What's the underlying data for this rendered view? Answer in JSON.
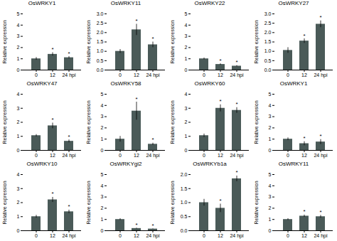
{
  "chart_data": [
    {
      "type": "bar",
      "title": "OsWRKY1",
      "ylabel": "Relative expression",
      "categories": [
        "0",
        "12",
        "24 hpi"
      ],
      "values": [
        1.0,
        1.4,
        1.1
      ],
      "errors": [
        0.12,
        0.15,
        0.1
      ],
      "annotations": [
        null,
        "*",
        "*"
      ],
      "color": "#4a5a58",
      "ylim": [
        0,
        5
      ],
      "yticks": [
        0,
        1,
        2,
        3,
        4,
        5
      ]
    },
    {
      "type": "bar",
      "title": "OsWRKY11",
      "ylabel": "Relative expression",
      "categories": [
        "0",
        "12",
        "24 hpi"
      ],
      "values": [
        1.0,
        2.15,
        1.35
      ],
      "errors": [
        0.1,
        0.3,
        0.15
      ],
      "annotations": [
        null,
        "*",
        "*"
      ],
      "color": "#4a5a58",
      "ylim": [
        0,
        3
      ],
      "yticks": [
        {
          "value": 0,
          "label": "0.0"
        },
        0.5,
        {
          "value": 1.0,
          "label": "1.0"
        },
        1.5,
        {
          "value": 2.0,
          "label": "2.0"
        },
        2.5,
        {
          "value": 3.0,
          "label": "3.0"
        }
      ]
    },
    {
      "type": "bar",
      "title": "OsWRKY22",
      "ylabel": "Relative expression",
      "categories": [
        "0",
        "12",
        "24 hpi"
      ],
      "values": [
        1.0,
        0.5,
        0.35
      ],
      "errors": [
        0.08,
        0.06,
        0.05
      ],
      "annotations": [
        null,
        "*",
        "*"
      ],
      "color": "#4a5a58",
      "ylim": [
        0,
        5
      ],
      "yticks": [
        0,
        1,
        2,
        3,
        4,
        5
      ]
    },
    {
      "type": "bar",
      "title": "OsWRKY27",
      "ylabel": "Relative expression",
      "categories": [
        "0",
        "12",
        "24 hpi"
      ],
      "values": [
        1.05,
        1.55,
        2.45
      ],
      "errors": [
        0.15,
        0.12,
        0.18
      ],
      "annotations": [
        null,
        "*",
        "*"
      ],
      "color": "#4a5a58",
      "ylim": [
        0,
        3
      ],
      "yticks": [
        {
          "value": 0,
          "label": "0.0"
        },
        0.5,
        {
          "value": 1.0,
          "label": "1.0"
        },
        1.5,
        {
          "value": 2.0,
          "label": "2.0"
        },
        2.5,
        {
          "value": 3.0,
          "label": "3.0"
        }
      ]
    },
    {
      "type": "bar",
      "title": "OsWRKY47",
      "ylabel": "Relative expression",
      "categories": [
        "0",
        "12",
        "24 hpi"
      ],
      "values": [
        1.05,
        1.75,
        0.65
      ],
      "errors": [
        0.08,
        0.2,
        0.1
      ],
      "annotations": [
        null,
        "*",
        "*"
      ],
      "color": "#4a5a58",
      "ylim": [
        0,
        4
      ],
      "yticks": [
        0,
        1,
        2,
        3,
        4
      ]
    },
    {
      "type": "bar",
      "title": "OsWRKY58",
      "ylabel": "Relative expression",
      "categories": [
        "0",
        "12",
        "24 hpi"
      ],
      "values": [
        1.0,
        3.5,
        0.55
      ],
      "errors": [
        0.25,
        0.8,
        0.1
      ],
      "annotations": [
        null,
        "*",
        "*"
      ],
      "color": "#4a5a58",
      "ylim": [
        0,
        5
      ],
      "yticks": [
        0,
        1,
        2,
        3,
        4,
        5
      ]
    },
    {
      "type": "bar",
      "title": "OsWRKY60",
      "ylabel": "Relative expression",
      "categories": [
        "0",
        "12",
        "24 hpi"
      ],
      "values": [
        1.05,
        3.0,
        2.85
      ],
      "errors": [
        0.12,
        0.25,
        0.2
      ],
      "annotations": [
        null,
        "*",
        "*"
      ],
      "color": "#4a5a58",
      "ylim": [
        0,
        4
      ],
      "yticks": [
        0,
        1,
        2,
        3,
        4
      ]
    },
    {
      "type": "bar",
      "title": "OsWRKY1",
      "ylabel": "Relative expression",
      "categories": [
        "0",
        "12",
        "24 hpi"
      ],
      "values": [
        1.0,
        0.6,
        0.75
      ],
      "errors": [
        0.12,
        0.18,
        0.22
      ],
      "annotations": [
        null,
        "*",
        "*"
      ],
      "color": "#4a5a58",
      "ylim": [
        0,
        5
      ],
      "yticks": [
        0,
        1,
        2,
        3,
        4,
        5
      ]
    },
    {
      "type": "bar",
      "title": "OsWRKY10",
      "ylabel": "Relative expression",
      "categories": [
        "0",
        "12",
        "24 hpi"
      ],
      "values": [
        1.0,
        2.2,
        1.35
      ],
      "errors": [
        0.1,
        0.18,
        0.12
      ],
      "annotations": [
        null,
        "*",
        "*"
      ],
      "color": "#4a5a58",
      "ylim": [
        0,
        4
      ],
      "yticks": [
        0,
        1,
        2,
        3,
        4
      ]
    },
    {
      "type": "bar",
      "title": "OsWRKYgi2",
      "ylabel": "Relative expression",
      "categories": [
        "0",
        "12",
        "24 hpi"
      ],
      "values": [
        1.0,
        0.2,
        0.15
      ],
      "errors": [
        0.08,
        0.03,
        0.02
      ],
      "annotations": [
        null,
        "*",
        "*"
      ],
      "color": "#4a5a58",
      "ylim": [
        0,
        5
      ],
      "yticks": [
        0,
        1,
        2,
        3,
        4,
        5
      ]
    },
    {
      "type": "bar",
      "title": "OsWRKYb1a",
      "ylabel": "Relative expression",
      "categories": [
        "0",
        "12",
        "24 hpi"
      ],
      "values": [
        1.0,
        0.8,
        1.85
      ],
      "errors": [
        0.12,
        0.15,
        0.1
      ],
      "annotations": [
        null,
        "*",
        "*"
      ],
      "color": "#4a5a58",
      "ylim": [
        0,
        2
      ],
      "yticks": [
        {
          "value": 0,
          "label": "0.0"
        },
        0.5,
        {
          "value": 1.0,
          "label": "1.0"
        },
        1.5,
        {
          "value": 2.0,
          "label": "2.0"
        }
      ]
    },
    {
      "type": "bar",
      "title": "OsWRKY11",
      "ylabel": "Relative expression",
      "categories": [
        "0",
        "12",
        "24 hpi"
      ],
      "values": [
        1.0,
        1.3,
        1.25
      ],
      "errors": [
        0.08,
        0.1,
        0.12
      ],
      "annotations": [
        null,
        "*",
        "*"
      ],
      "color": "#4a5a58",
      "ylim": [
        0,
        5
      ],
      "yticks": [
        0,
        1,
        2,
        3,
        4,
        5
      ]
    }
  ]
}
